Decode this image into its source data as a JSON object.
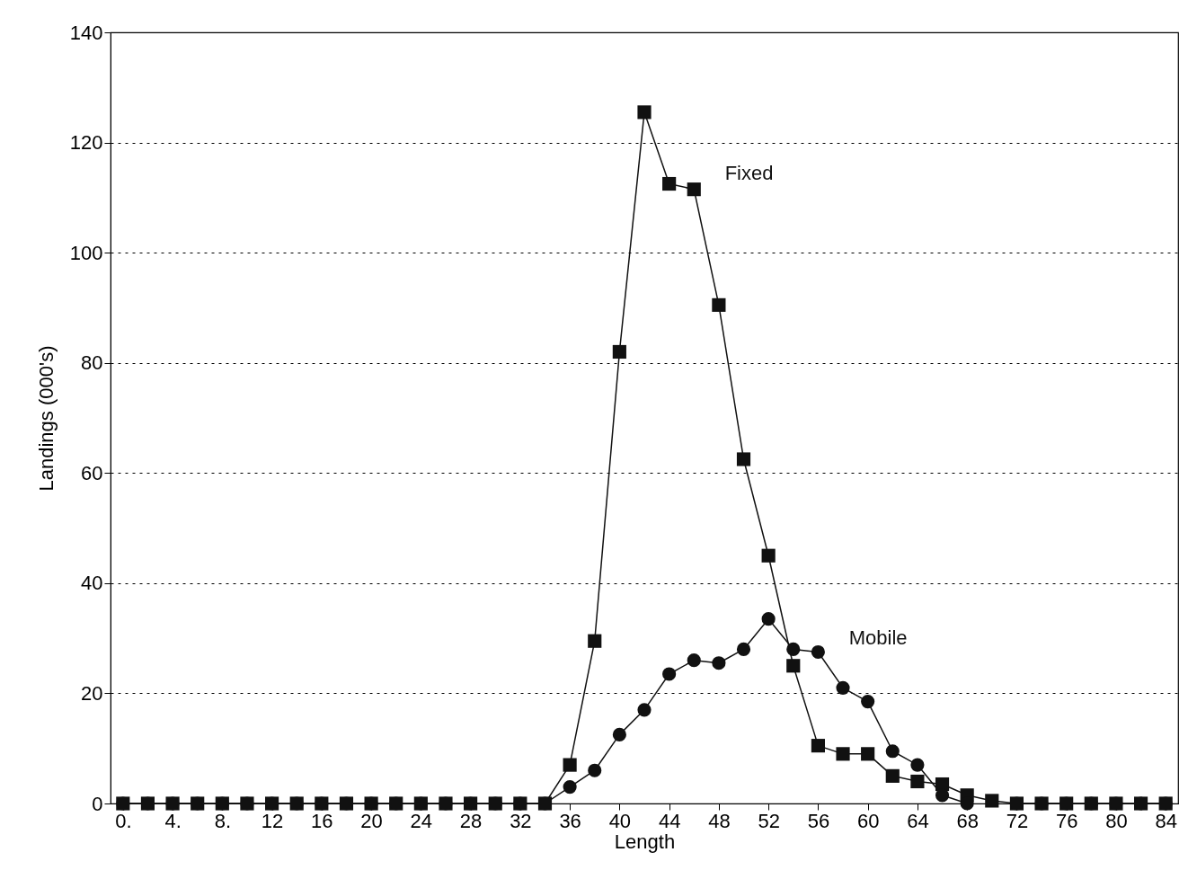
{
  "chart_data": {
    "type": "line",
    "xlabel": "Length",
    "ylabel": "Landings (000's)",
    "x": [
      0,
      2,
      4,
      6,
      8,
      10,
      12,
      14,
      16,
      18,
      20,
      22,
      24,
      26,
      28,
      30,
      32,
      34,
      36,
      38,
      40,
      42,
      44,
      46,
      48,
      50,
      52,
      54,
      56,
      58,
      60,
      62,
      64,
      66,
      68,
      70,
      72,
      74,
      76,
      78,
      80,
      82,
      84
    ],
    "series": [
      {
        "name": "Fixed",
        "color": "#111111",
        "marker": "square",
        "values": [
          0,
          0,
          0,
          0,
          0,
          0,
          0,
          0,
          0,
          0,
          0,
          0,
          0,
          0,
          0,
          0,
          0,
          0,
          7,
          29.5,
          82,
          125.5,
          112.5,
          111.5,
          90.5,
          62.5,
          45,
          25,
          10.5,
          9,
          9,
          5,
          4,
          3.5,
          1.5,
          0.5,
          0,
          0,
          0,
          0,
          0,
          0,
          0
        ]
      },
      {
        "name": "Mobile",
        "color": "#111111",
        "marker": "circle",
        "values": [
          0,
          0,
          0,
          0,
          0,
          0,
          0,
          0,
          0,
          0,
          0,
          0,
          0,
          0,
          0,
          0,
          0,
          0,
          3,
          6,
          12.5,
          17,
          23.5,
          26,
          25.5,
          28,
          33.5,
          28,
          27.5,
          21,
          18.5,
          9.5,
          7,
          1.5,
          0,
          null,
          0,
          0,
          0,
          0,
          0,
          0,
          0
        ]
      }
    ],
    "xlim": [
      -1,
      85
    ],
    "xticks": [
      {
        "value": 0,
        "label": "0."
      },
      {
        "value": 4,
        "label": "4."
      },
      {
        "value": 8,
        "label": "8."
      },
      12,
      16,
      20,
      24,
      28,
      32,
      36,
      40,
      44,
      48,
      52,
      56,
      60,
      64,
      68,
      72,
      76,
      80,
      84
    ],
    "ylim": [
      0,
      140
    ],
    "yticks": [
      0,
      20,
      40,
      60,
      80,
      100,
      120,
      140
    ],
    "grid": "y",
    "line_style": "solid"
  }
}
